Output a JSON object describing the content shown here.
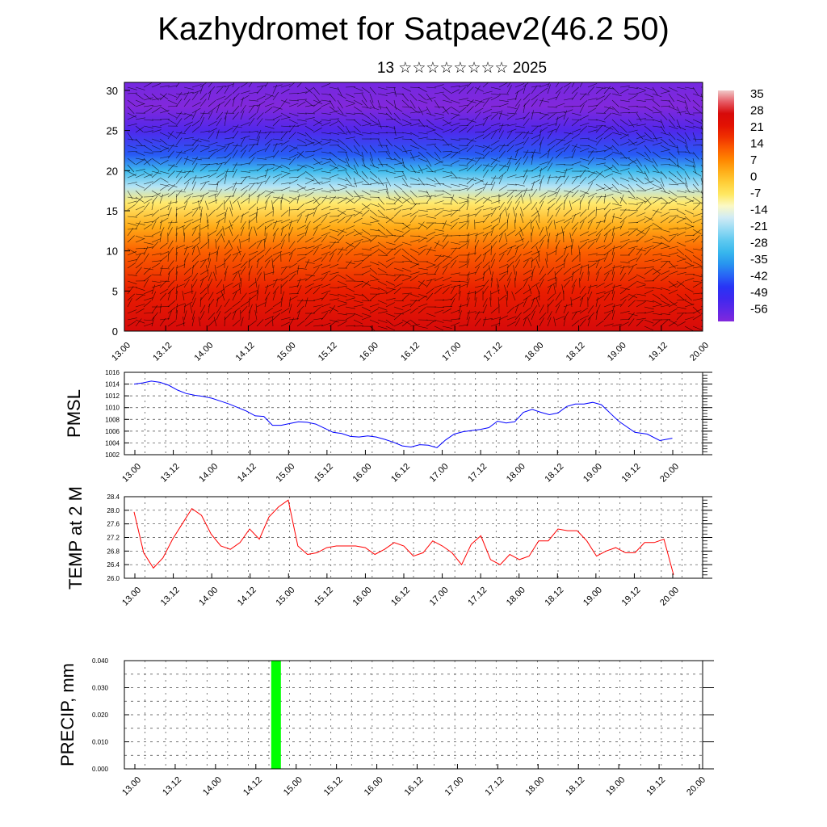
{
  "header": {
    "title": "Kazhydromet for Satpaev2(46.2 50)",
    "subtitle": "13 ☆☆☆☆☆☆☆☆ 2025"
  },
  "time_ticks": [
    "13.00",
    "13.12",
    "14.00",
    "14.12",
    "15.00",
    "15.12",
    "16.00",
    "16.12",
    "17.00",
    "17.12",
    "18.00",
    "18.12",
    "19.00",
    "19.12",
    "20.00"
  ],
  "colors": {
    "pmsl_line": "#0000ff",
    "temp_line": "#ff0000",
    "precip_bar": "#00ff00"
  },
  "chart_data": [
    {
      "type": "heatmap",
      "title": "",
      "x": [
        "13.00",
        "13.12",
        "14.00",
        "14.12",
        "15.00",
        "15.12",
        "16.00",
        "16.12",
        "17.00",
        "17.12",
        "18.00",
        "18.12",
        "19.00",
        "19.12",
        "20.00"
      ],
      "yticks": [
        "0",
        "5",
        "10",
        "15",
        "20",
        "25",
        "30"
      ],
      "ylim": [
        0,
        31
      ],
      "colorbar": {
        "labels": [
          "35",
          "28",
          "21",
          "14",
          "7",
          "0",
          "-7",
          "-14",
          "-21",
          "-28",
          "-35",
          "-42",
          "-49",
          "-56"
        ],
        "range": [
          -63,
          38
        ]
      },
      "overlay": "wind barbs",
      "temperature_profile": [
        {
          "height": 0,
          "value": 28
        },
        {
          "height": 5,
          "value": 20
        },
        {
          "height": 10,
          "value": 12
        },
        {
          "height": 13,
          "value": 3
        },
        {
          "height": 16,
          "value": -8
        },
        {
          "height": 18,
          "value": -20
        },
        {
          "height": 20,
          "value": -32
        },
        {
          "height": 22,
          "value": -44
        },
        {
          "height": 25,
          "value": -56
        },
        {
          "height": 28,
          "value": -63
        },
        {
          "height": 31,
          "value": -61
        }
      ]
    },
    {
      "type": "line",
      "ylabel": "PMSL",
      "ylim": [
        1002,
        1016
      ],
      "yticks": [
        "1002",
        "1004",
        "1006",
        "1008",
        "1010",
        "1012",
        "1014",
        "1016"
      ],
      "x": [
        "13.00",
        "13.03",
        "13.06",
        "13.09",
        "13.12",
        "13.15",
        "13.18",
        "13.21",
        "14.00",
        "14.03",
        "14.06",
        "14.09",
        "14.12",
        "14.15",
        "14.18",
        "14.21",
        "15.00",
        "15.03",
        "15.06",
        "15.09",
        "15.12",
        "15.15",
        "15.18",
        "15.21",
        "16.00",
        "16.03",
        "16.06",
        "16.09",
        "16.12",
        "16.15",
        "16.18",
        "16.21",
        "17.00",
        "17.03",
        "17.06",
        "17.09",
        "17.12",
        "17.15",
        "17.18",
        "17.21",
        "18.00",
        "18.03",
        "18.06",
        "18.09",
        "18.12",
        "18.15",
        "18.18",
        "18.21",
        "19.00",
        "19.03",
        "19.06",
        "19.09",
        "19.12",
        "19.15",
        "19.18",
        "19.21",
        "20.00"
      ],
      "series": [
        {
          "values": [
            1014,
            1014.2,
            1014.5,
            1014.3,
            1013.8,
            1013,
            1012.4,
            1012.1,
            1011.9,
            1011.6,
            1011.1,
            1010.6,
            1010,
            1009.4,
            1008.6,
            1008.5,
            1007,
            1007,
            1007.3,
            1007.6,
            1007.5,
            1007.2,
            1006.5,
            1005.8,
            1005.6,
            1005.1,
            1005,
            1005.2,
            1005,
            1004.6,
            1004.1,
            1003.5,
            1003.3,
            1003.7,
            1003.6,
            1003.2,
            1004.5,
            1005.5,
            1005.9,
            1006.1,
            1006.3,
            1006.6,
            1007.7,
            1007.4,
            1007.6,
            1009.2,
            1009.7,
            1009.2,
            1008.8,
            1009.1,
            1010.2,
            1010.6,
            1010.6,
            1010.9,
            1010.5,
            1009.1,
            1007.7
          ]
        }
      ],
      "tail": [
        1005.8,
        1005.5,
        1004.4,
        1004.8
      ]
    },
    {
      "type": "line",
      "ylabel": "TEMP at 2 M",
      "ylim": [
        26.0,
        28.4
      ],
      "yticks": [
        "26.0",
        "26.4",
        "26.8",
        "27.2",
        "27.6",
        "28.0",
        "28.4"
      ],
      "series": [
        {
          "values": [
            27.95,
            26.75,
            26.3,
            26.6,
            27.15,
            27.6,
            28.05,
            27.85,
            27.3,
            26.95,
            26.85,
            27.05,
            27.45,
            27.15,
            27.8,
            28.1,
            28.3,
            26.95,
            26.7,
            26.75,
            26.9,
            26.95,
            26.95,
            26.95,
            26.9,
            26.7,
            26.85,
            27.05,
            26.95,
            26.65,
            26.75,
            27.1,
            26.95,
            26.75,
            26.4,
            27,
            27.25,
            26.55,
            26.4,
            26.7,
            26.55,
            26.65,
            27.1,
            27.1,
            27.45,
            27.4,
            27.4,
            27.1,
            26.65,
            26.8,
            26.9,
            26.75,
            26.75,
            27.05,
            27.05,
            27.15,
            26.1
          ]
        }
      ]
    },
    {
      "type": "bar",
      "ylabel": "PRECIP, mm",
      "ylim": [
        0,
        0.04
      ],
      "yticks": [
        "0.000",
        "0.010",
        "0.020",
        "0.030",
        "0.040"
      ],
      "bars": [
        {
          "x": "14.18",
          "value": 0.04
        }
      ]
    }
  ]
}
